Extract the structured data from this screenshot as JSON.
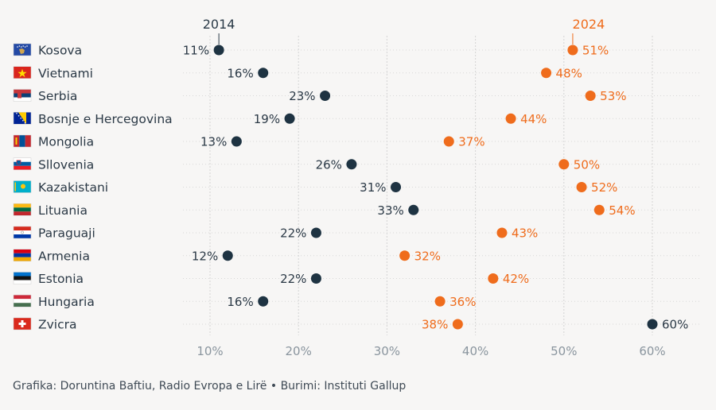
{
  "chart_data": {
    "type": "dumbbell",
    "series": [
      {
        "name": "2014",
        "color": "#1e3342"
      },
      {
        "name": "2024",
        "color": "#ef6c1c"
      }
    ],
    "xlim": [
      8,
      61
    ],
    "xticks": [
      10,
      20,
      30,
      40,
      50,
      60
    ],
    "tick_suffix": "%",
    "grid": true,
    "rows": [
      {
        "country": "Kosova",
        "flag": "kosovo-flag",
        "v2014": 11,
        "v2024": 51
      },
      {
        "country": "Vietnami",
        "flag": "vietnam-flag",
        "v2014": 16,
        "v2024": 48
      },
      {
        "country": "Serbia",
        "flag": "serbia-flag",
        "v2014": 23,
        "v2024": 53
      },
      {
        "country": "Bosnje e Hercegovina",
        "flag": "bosnia-flag",
        "v2014": 19,
        "v2024": 44
      },
      {
        "country": "Mongolia",
        "flag": "mongolia-flag",
        "v2014": 13,
        "v2024": 37
      },
      {
        "country": "Sllovenia",
        "flag": "slovenia-flag",
        "v2014": 26,
        "v2024": 50
      },
      {
        "country": "Kazakistani",
        "flag": "kazakhstan-flag",
        "v2014": 31,
        "v2024": 52
      },
      {
        "country": "Lituania",
        "flag": "lithuania-flag",
        "v2014": 33,
        "v2024": 54
      },
      {
        "country": "Paraguaji",
        "flag": "paraguay-flag",
        "v2014": 22,
        "v2024": 43
      },
      {
        "country": "Armenia",
        "flag": "armenia-flag",
        "v2014": 12,
        "v2024": 32
      },
      {
        "country": "Estonia",
        "flag": "estonia-flag",
        "v2014": 22,
        "v2024": 42
      },
      {
        "country": "Hungaria",
        "flag": "hungary-flag",
        "v2014": 16,
        "v2024": 36
      },
      {
        "country": "Zvicra",
        "flag": "switzerland-flag",
        "v2014": 60,
        "v2024": 38
      }
    ]
  },
  "credit": "Grafika: Doruntina Baftiu, Radio Evropa e Lirë • Burimi: Instituti Gallup"
}
